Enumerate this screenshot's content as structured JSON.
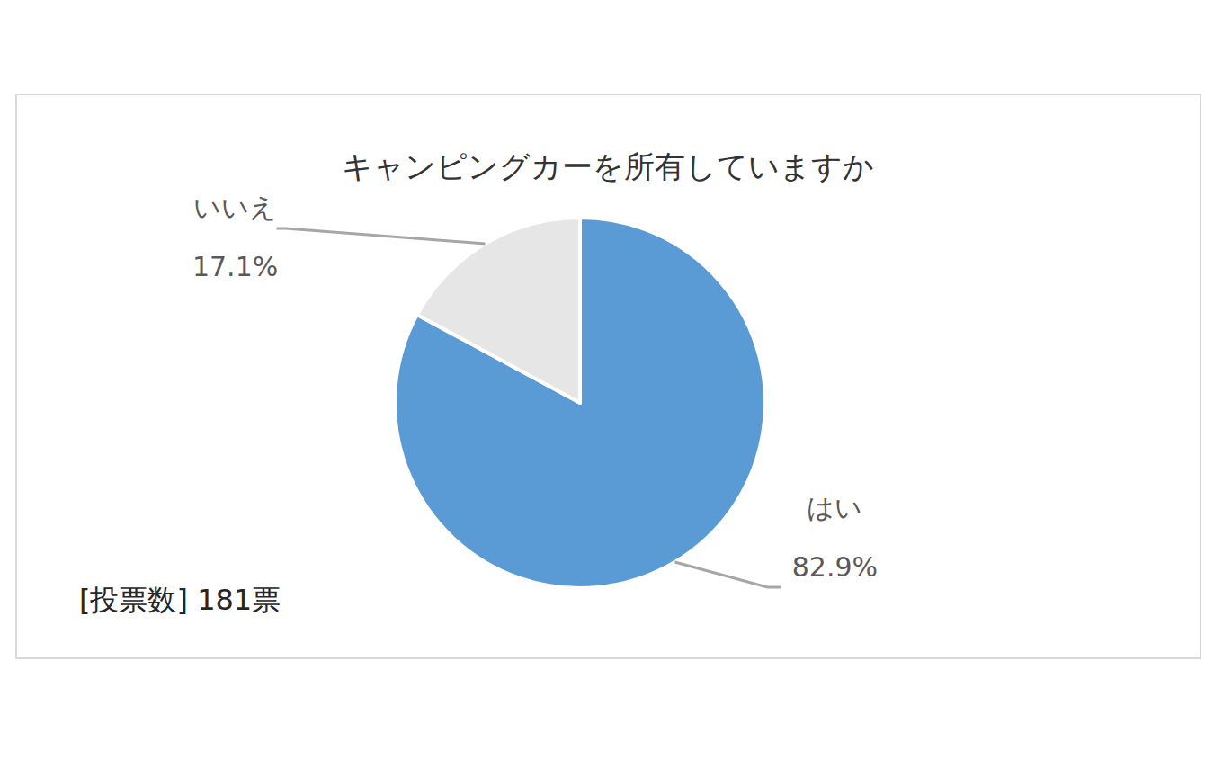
{
  "chart_data": {
    "type": "pie",
    "title": "キャンピングカーを所有していますか",
    "categories": [
      "はい",
      "いいえ"
    ],
    "values": [
      82.9,
      17.1
    ],
    "value_labels": [
      "82.9%",
      "17.1%"
    ],
    "colors": [
      "#5b9bd5",
      "#e7e6e6"
    ],
    "data_labels": true,
    "annotation": "[投票数]  181票"
  }
}
